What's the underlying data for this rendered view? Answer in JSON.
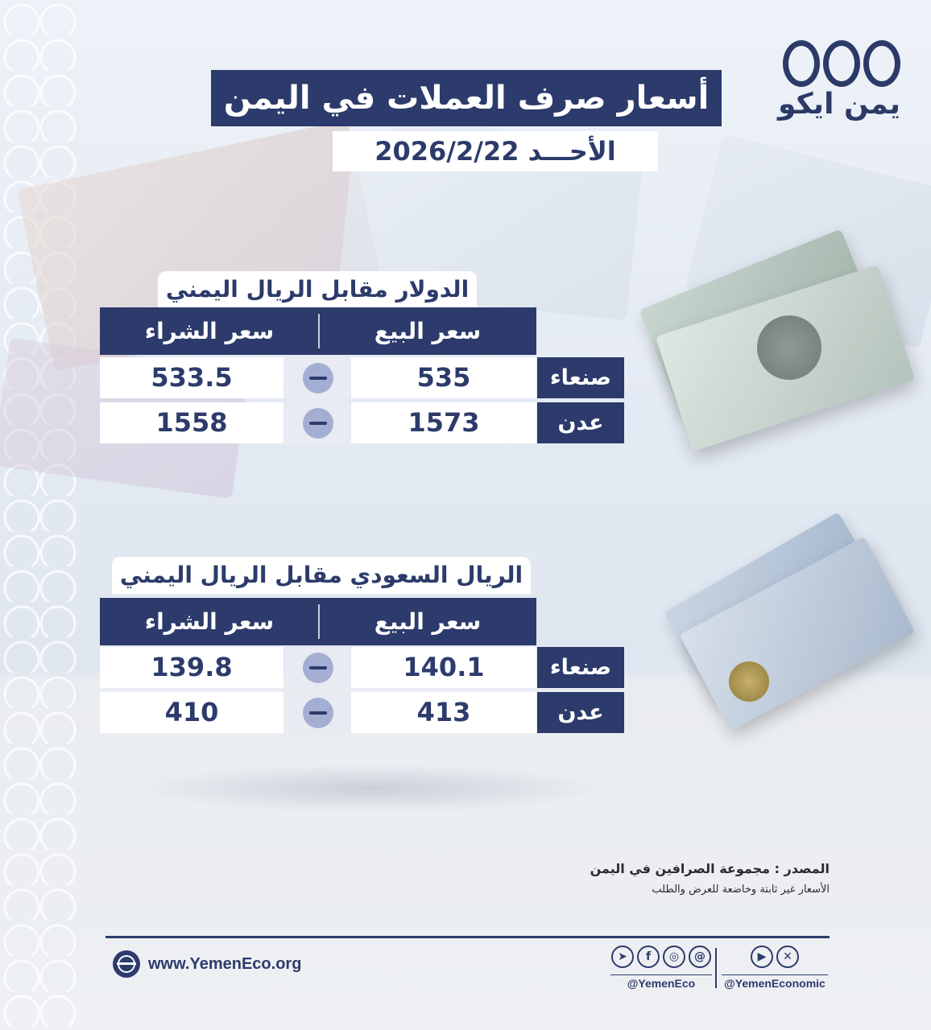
{
  "brand": {
    "logo_text": "يمن ايكو"
  },
  "header": {
    "title": "أسعار صرف العملات في اليمن",
    "date": "الأحـــد 2026/2/22"
  },
  "tables": [
    {
      "title": "الدولار مقابل الريال اليمني",
      "sell_header": "سعر البيع",
      "buy_header": "سعر الشراء",
      "rows": [
        {
          "city": "صنعاء",
          "sell": "535",
          "buy": "533.5"
        },
        {
          "city": "عدن",
          "sell": "1573",
          "buy": "1558"
        }
      ]
    },
    {
      "title": "الريال السعودي مقابل الريال اليمني",
      "sell_header": "سعر البيع",
      "buy_header": "سعر الشراء",
      "rows": [
        {
          "city": "صنعاء",
          "sell": "140.1",
          "buy": "139.8"
        },
        {
          "city": "عدن",
          "sell": "413",
          "buy": "410"
        }
      ]
    }
  ],
  "source": {
    "line1": "المصدر : مجموعة الصرافين في اليمن",
    "line2": "الأسعار غير ثابتة وخاضعة للعرض والطلب"
  },
  "footer": {
    "website": "www.YemenEco.org",
    "handle_primary": "@YemenEco",
    "handle_secondary": "@YemenEconomic",
    "icons_primary": [
      "telegram-icon",
      "facebook-icon",
      "instagram-icon",
      "threads-icon"
    ],
    "icons_secondary": [
      "youtube-icon",
      "x-icon"
    ]
  },
  "colors": {
    "navy": "#2c3b6b",
    "badge": "#a4aed2",
    "white": "#ffffff"
  }
}
